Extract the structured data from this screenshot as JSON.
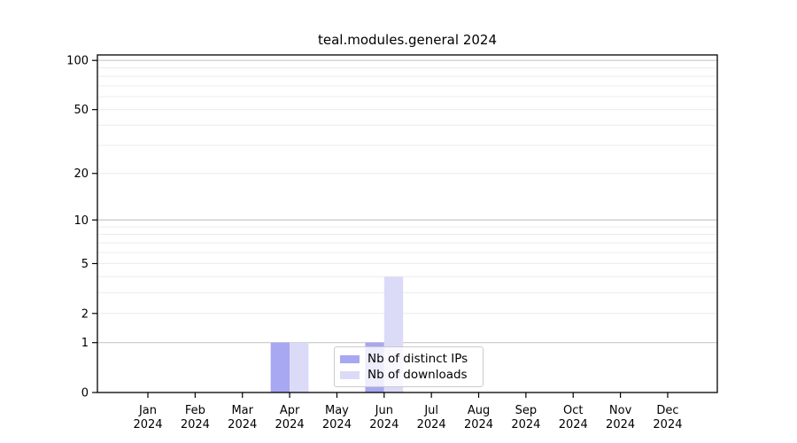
{
  "chart_data": {
    "type": "bar",
    "title": "teal.modules.general 2024",
    "categories": [
      "Jan 2024",
      "Feb 2024",
      "Mar 2024",
      "Apr 2024",
      "May 2024",
      "Jun 2024",
      "Jul 2024",
      "Aug 2024",
      "Sep 2024",
      "Oct 2024",
      "Nov 2024",
      "Dec 2024"
    ],
    "series": [
      {
        "name": "Nb of distinct IPs",
        "color": "#a7a7f2",
        "values": [
          0,
          0,
          0,
          1,
          0,
          1,
          0,
          0,
          0,
          0,
          0,
          0
        ]
      },
      {
        "name": "Nb of downloads",
        "color": "#dbdbf8",
        "values": [
          0,
          0,
          0,
          1,
          0,
          4,
          0,
          0,
          0,
          0,
          0,
          0
        ]
      }
    ],
    "yscale": "log1p",
    "ylim": [
      0,
      108
    ],
    "yticks": [
      0,
      1,
      2,
      5,
      10,
      20,
      50,
      100
    ],
    "grid": {
      "major": [
        1,
        10,
        100
      ],
      "minor": [
        2,
        3,
        4,
        5,
        6,
        7,
        8,
        9,
        20,
        30,
        40,
        50,
        60,
        70,
        80,
        90
      ]
    },
    "colors": {
      "major_grid": "#c8c8c8",
      "minor_grid": "#ececec",
      "axis": "#000000",
      "legend_border": "#cccccc"
    },
    "legend_position": "lower center"
  }
}
